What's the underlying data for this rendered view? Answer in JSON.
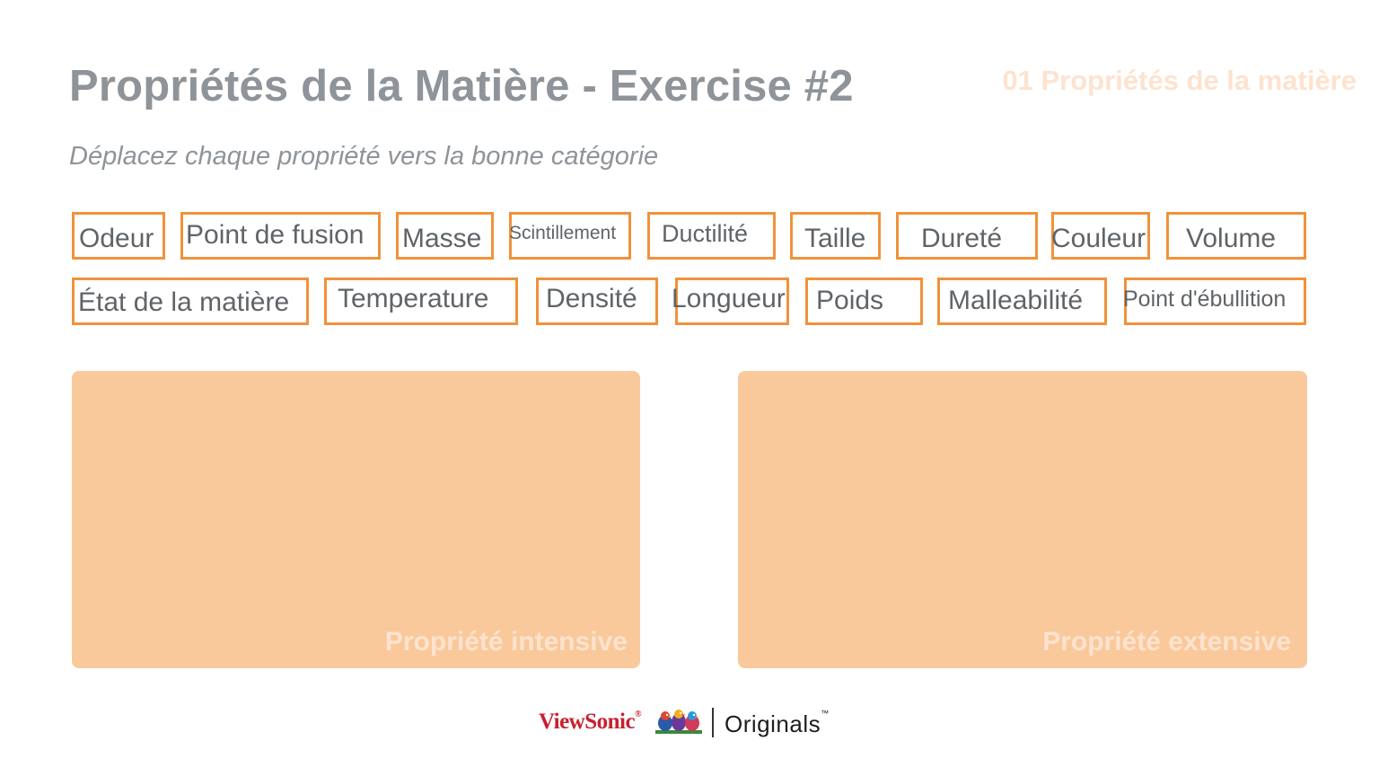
{
  "header": {
    "title": "Propriétés de la Matière - Exercise #2",
    "topic": "01 Propriétés de la matière",
    "instruction": "Déplacez chaque propriété vers la bonne catégorie"
  },
  "cards": [
    {
      "label": "Odeur"
    },
    {
      "label": "Point de fusion"
    },
    {
      "label": "Masse"
    },
    {
      "label": "Scintillement"
    },
    {
      "label": "Ductilité"
    },
    {
      "label": "Taille"
    },
    {
      "label": "Dureté"
    },
    {
      "label": "Couleur"
    },
    {
      "label": "Volume"
    },
    {
      "label": "État de la matière"
    },
    {
      "label": "Temperature"
    },
    {
      "label": "Densité"
    },
    {
      "label": "Longueur"
    },
    {
      "label": "Poids"
    },
    {
      "label": "Malleabilité"
    },
    {
      "label": "Point d'ébullition"
    }
  ],
  "zones": {
    "intensive": "Propriété intensive",
    "extensive": "Propriété extensive"
  },
  "footer": {
    "brand": "ViewSonic",
    "brand_mark": "®",
    "product": "Originals",
    "trademark": "™"
  },
  "colors": {
    "card_border": "#f0923a",
    "zone_fill": "#f9c99b",
    "text_gray": "#8e9499",
    "brand_red": "#c8202f"
  }
}
